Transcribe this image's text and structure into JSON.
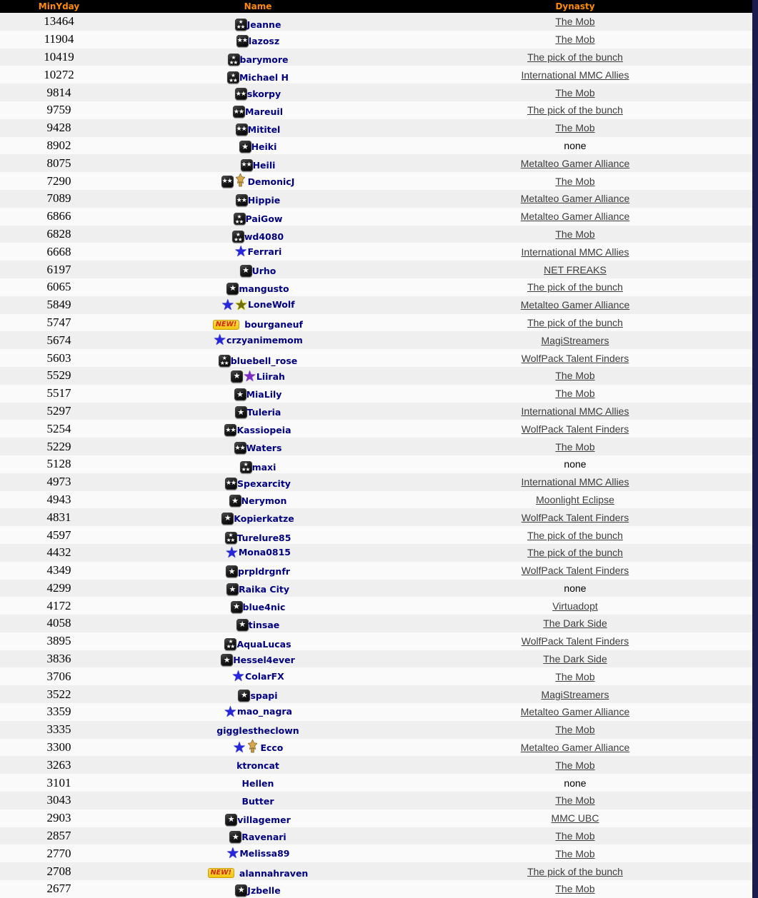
{
  "table": {
    "columns": [
      {
        "label": "MinYday"
      },
      {
        "label": "Name"
      },
      {
        "label": "Dynasty"
      }
    ],
    "colors": {
      "header_bg": "#000000",
      "header_text": "#ff8c00",
      "row_odd": "#efeff0",
      "row_even": "#fafafa",
      "player_name": "#000080",
      "dynasty_link": "#3d3d3d",
      "right_edge_strip": "#1b1b4f",
      "new_badge_bg": "#f2c50f",
      "new_badge_text": "#cc2a00",
      "blue_star": "#2626dd",
      "purple_star": "#7d2cc8",
      "olive_star": "#6e6e10"
    }
  },
  "icon_legend": {
    "badge1": "level-badge-1-star-icon",
    "badge2": "level-badge-2-stars-icon",
    "badge3": "level-badge-3-stars-icon",
    "bluestar": "blue-star-icon",
    "purplestar": "purple-star-icon",
    "olivestar": "olive-star-icon",
    "goldfigure": "gold-trophy-figure-icon",
    "new": "new-player-badge"
  },
  "rows": [
    {
      "minyday": "13464",
      "icons": [
        "badge3"
      ],
      "name": "Jeanne",
      "dynasty": "The Mob",
      "dynasty_is_link": true
    },
    {
      "minyday": "11904",
      "icons": [
        "badge2"
      ],
      "name": "lazosz",
      "dynasty": "The Mob",
      "dynasty_is_link": true
    },
    {
      "minyday": "10419",
      "icons": [
        "badge3"
      ],
      "name": "barymore",
      "dynasty": "The pick of the bunch",
      "dynasty_is_link": true
    },
    {
      "minyday": "10272",
      "icons": [
        "badge3"
      ],
      "name": "Michael H",
      "dynasty": "International MMC Allies",
      "dynasty_is_link": true
    },
    {
      "minyday": "9814",
      "icons": [
        "badge2"
      ],
      "name": "skorpy",
      "dynasty": "The Mob",
      "dynasty_is_link": true
    },
    {
      "minyday": "9759",
      "icons": [
        "badge2"
      ],
      "name": "Mareuil",
      "dynasty": "The pick of the bunch",
      "dynasty_is_link": true
    },
    {
      "minyday": "9428",
      "icons": [
        "badge2"
      ],
      "name": "Mititel",
      "dynasty": "The Mob",
      "dynasty_is_link": true
    },
    {
      "minyday": "8902",
      "icons": [
        "badge1"
      ],
      "name": "Heiki",
      "dynasty": "none",
      "dynasty_is_link": false
    },
    {
      "minyday": "8075",
      "icons": [
        "badge2"
      ],
      "name": "Heili",
      "dynasty": "Metalteo Gamer Alliance",
      "dynasty_is_link": true
    },
    {
      "minyday": "7290",
      "icons": [
        "badge2",
        "goldfigure"
      ],
      "name": "DemonicJ",
      "dynasty": "The Mob",
      "dynasty_is_link": true
    },
    {
      "minyday": "7089",
      "icons": [
        "badge2"
      ],
      "name": "Hippie",
      "dynasty": "Metalteo Gamer Alliance",
      "dynasty_is_link": true
    },
    {
      "minyday": "6866",
      "icons": [
        "badge3"
      ],
      "name": "PaiGow",
      "dynasty": "Metalteo Gamer Alliance",
      "dynasty_is_link": true
    },
    {
      "minyday": "6828",
      "icons": [
        "badge3"
      ],
      "name": "wd4080",
      "dynasty": "The Mob",
      "dynasty_is_link": true
    },
    {
      "minyday": "6668",
      "icons": [
        "bluestar"
      ],
      "name": "Ferrari",
      "dynasty": "International MMC Allies",
      "dynasty_is_link": true
    },
    {
      "minyday": "6197",
      "icons": [
        "badge1"
      ],
      "name": "Urho",
      "dynasty": "NET FREAKS",
      "dynasty_is_link": true
    },
    {
      "minyday": "6065",
      "icons": [
        "badge1"
      ],
      "name": "mangusto",
      "dynasty": "The pick of the bunch",
      "dynasty_is_link": true
    },
    {
      "minyday": "5849",
      "icons": [
        "bluestar",
        "olivestar"
      ],
      "name": "LoneWolf",
      "dynasty": "Metalteo Gamer Alliance",
      "dynasty_is_link": true
    },
    {
      "minyday": "5747",
      "icons": [
        "new"
      ],
      "name": "bourganeuf",
      "dynasty": "The pick of the bunch",
      "dynasty_is_link": true
    },
    {
      "minyday": "5674",
      "icons": [
        "bluestar"
      ],
      "name": "crzyanimemom",
      "dynasty": "MagiStreamers",
      "dynasty_is_link": true
    },
    {
      "minyday": "5603",
      "icons": [
        "badge3"
      ],
      "name": "bluebell_rose",
      "dynasty": "WolfPack Talent Finders",
      "dynasty_is_link": true
    },
    {
      "minyday": "5529",
      "icons": [
        "badge1",
        "purplestar"
      ],
      "name": "Liirah",
      "dynasty": "The Mob",
      "dynasty_is_link": true
    },
    {
      "minyday": "5517",
      "icons": [
        "badge1"
      ],
      "name": "MiaLily",
      "dynasty": "The Mob",
      "dynasty_is_link": true
    },
    {
      "minyday": "5297",
      "icons": [
        "badge1"
      ],
      "name": "Tuleria",
      "dynasty": "International MMC Allies",
      "dynasty_is_link": true
    },
    {
      "minyday": "5254",
      "icons": [
        "badge2"
      ],
      "name": "Kassiopeia",
      "dynasty": "WolfPack Talent Finders",
      "dynasty_is_link": true
    },
    {
      "minyday": "5229",
      "icons": [
        "badge2"
      ],
      "name": "Waters",
      "dynasty": "The Mob",
      "dynasty_is_link": true
    },
    {
      "minyday": "5128",
      "icons": [
        "badge3"
      ],
      "name": "maxi",
      "dynasty": "none",
      "dynasty_is_link": false
    },
    {
      "minyday": "4973",
      "icons": [
        "badge2"
      ],
      "name": "Spexarcity",
      "dynasty": "International MMC Allies",
      "dynasty_is_link": true
    },
    {
      "minyday": "4943",
      "icons": [
        "badge1"
      ],
      "name": "Nerymon",
      "dynasty": "Moonlight Eclipse",
      "dynasty_is_link": true
    },
    {
      "minyday": "4831",
      "icons": [
        "badge1"
      ],
      "name": "Kopierkatze",
      "dynasty": "WolfPack Talent Finders",
      "dynasty_is_link": true
    },
    {
      "minyday": "4597",
      "icons": [
        "badge3"
      ],
      "name": "Turelure85",
      "dynasty": "The pick of the bunch",
      "dynasty_is_link": true
    },
    {
      "minyday": "4432",
      "icons": [
        "bluestar"
      ],
      "name": "Mona0815",
      "dynasty": "The pick of the bunch",
      "dynasty_is_link": true
    },
    {
      "minyday": "4349",
      "icons": [
        "badge1"
      ],
      "name": "prpldrgnfr",
      "dynasty": "WolfPack Talent Finders",
      "dynasty_is_link": true
    },
    {
      "minyday": "4299",
      "icons": [
        "badge1"
      ],
      "name": "Raika City",
      "dynasty": "none",
      "dynasty_is_link": false
    },
    {
      "minyday": "4172",
      "icons": [
        "badge1"
      ],
      "name": "blue4nic",
      "dynasty": "Virtuadopt",
      "dynasty_is_link": true
    },
    {
      "minyday": "4058",
      "icons": [
        "badge1"
      ],
      "name": "tinsae",
      "dynasty": "The Dark Side",
      "dynasty_is_link": true
    },
    {
      "minyday": "3895",
      "icons": [
        "badge3"
      ],
      "name": "AquaLucas",
      "dynasty": "WolfPack Talent Finders",
      "dynasty_is_link": true
    },
    {
      "minyday": "3836",
      "icons": [
        "badge1"
      ],
      "name": "Hessel4ever",
      "dynasty": "The Dark Side",
      "dynasty_is_link": true
    },
    {
      "minyday": "3706",
      "icons": [
        "bluestar"
      ],
      "name": "ColarFX",
      "dynasty": "The Mob",
      "dynasty_is_link": true
    },
    {
      "minyday": "3522",
      "icons": [
        "badge1"
      ],
      "name": "spapi",
      "dynasty": "MagiStreamers",
      "dynasty_is_link": true
    },
    {
      "minyday": "3359",
      "icons": [
        "bluestar"
      ],
      "name": "mao_nagra",
      "dynasty": "Metalteo Gamer Alliance",
      "dynasty_is_link": true
    },
    {
      "minyday": "3335",
      "icons": [],
      "name": "gigglestheclown",
      "dynasty": "The Mob",
      "dynasty_is_link": true
    },
    {
      "minyday": "3300",
      "icons": [
        "bluestar",
        "goldfigure"
      ],
      "name": "Ecco",
      "dynasty": "Metalteo Gamer Alliance",
      "dynasty_is_link": true
    },
    {
      "minyday": "3263",
      "icons": [],
      "name": "ktroncat",
      "dynasty": "The Mob",
      "dynasty_is_link": true
    },
    {
      "minyday": "3101",
      "icons": [],
      "name": "Hellen",
      "dynasty": "none",
      "dynasty_is_link": false
    },
    {
      "minyday": "3043",
      "icons": [],
      "name": "Butter",
      "dynasty": "The Mob",
      "dynasty_is_link": true
    },
    {
      "minyday": "2903",
      "icons": [
        "badge1"
      ],
      "name": "villagemer",
      "dynasty": "MMC UBC",
      "dynasty_is_link": true
    },
    {
      "minyday": "2857",
      "icons": [
        "badge1"
      ],
      "name": "Ravenari",
      "dynasty": "The Mob",
      "dynasty_is_link": true
    },
    {
      "minyday": "2770",
      "icons": [
        "bluestar"
      ],
      "name": "Melissa89",
      "dynasty": "The Mob",
      "dynasty_is_link": true
    },
    {
      "minyday": "2708",
      "icons": [
        "new"
      ],
      "name": "alannahraven",
      "dynasty": "The pick of the bunch",
      "dynasty_is_link": true
    },
    {
      "minyday": "2677",
      "icons": [
        "badge1"
      ],
      "name": "Jzbelle",
      "dynasty": "The Mob",
      "dynasty_is_link": true
    }
  ]
}
